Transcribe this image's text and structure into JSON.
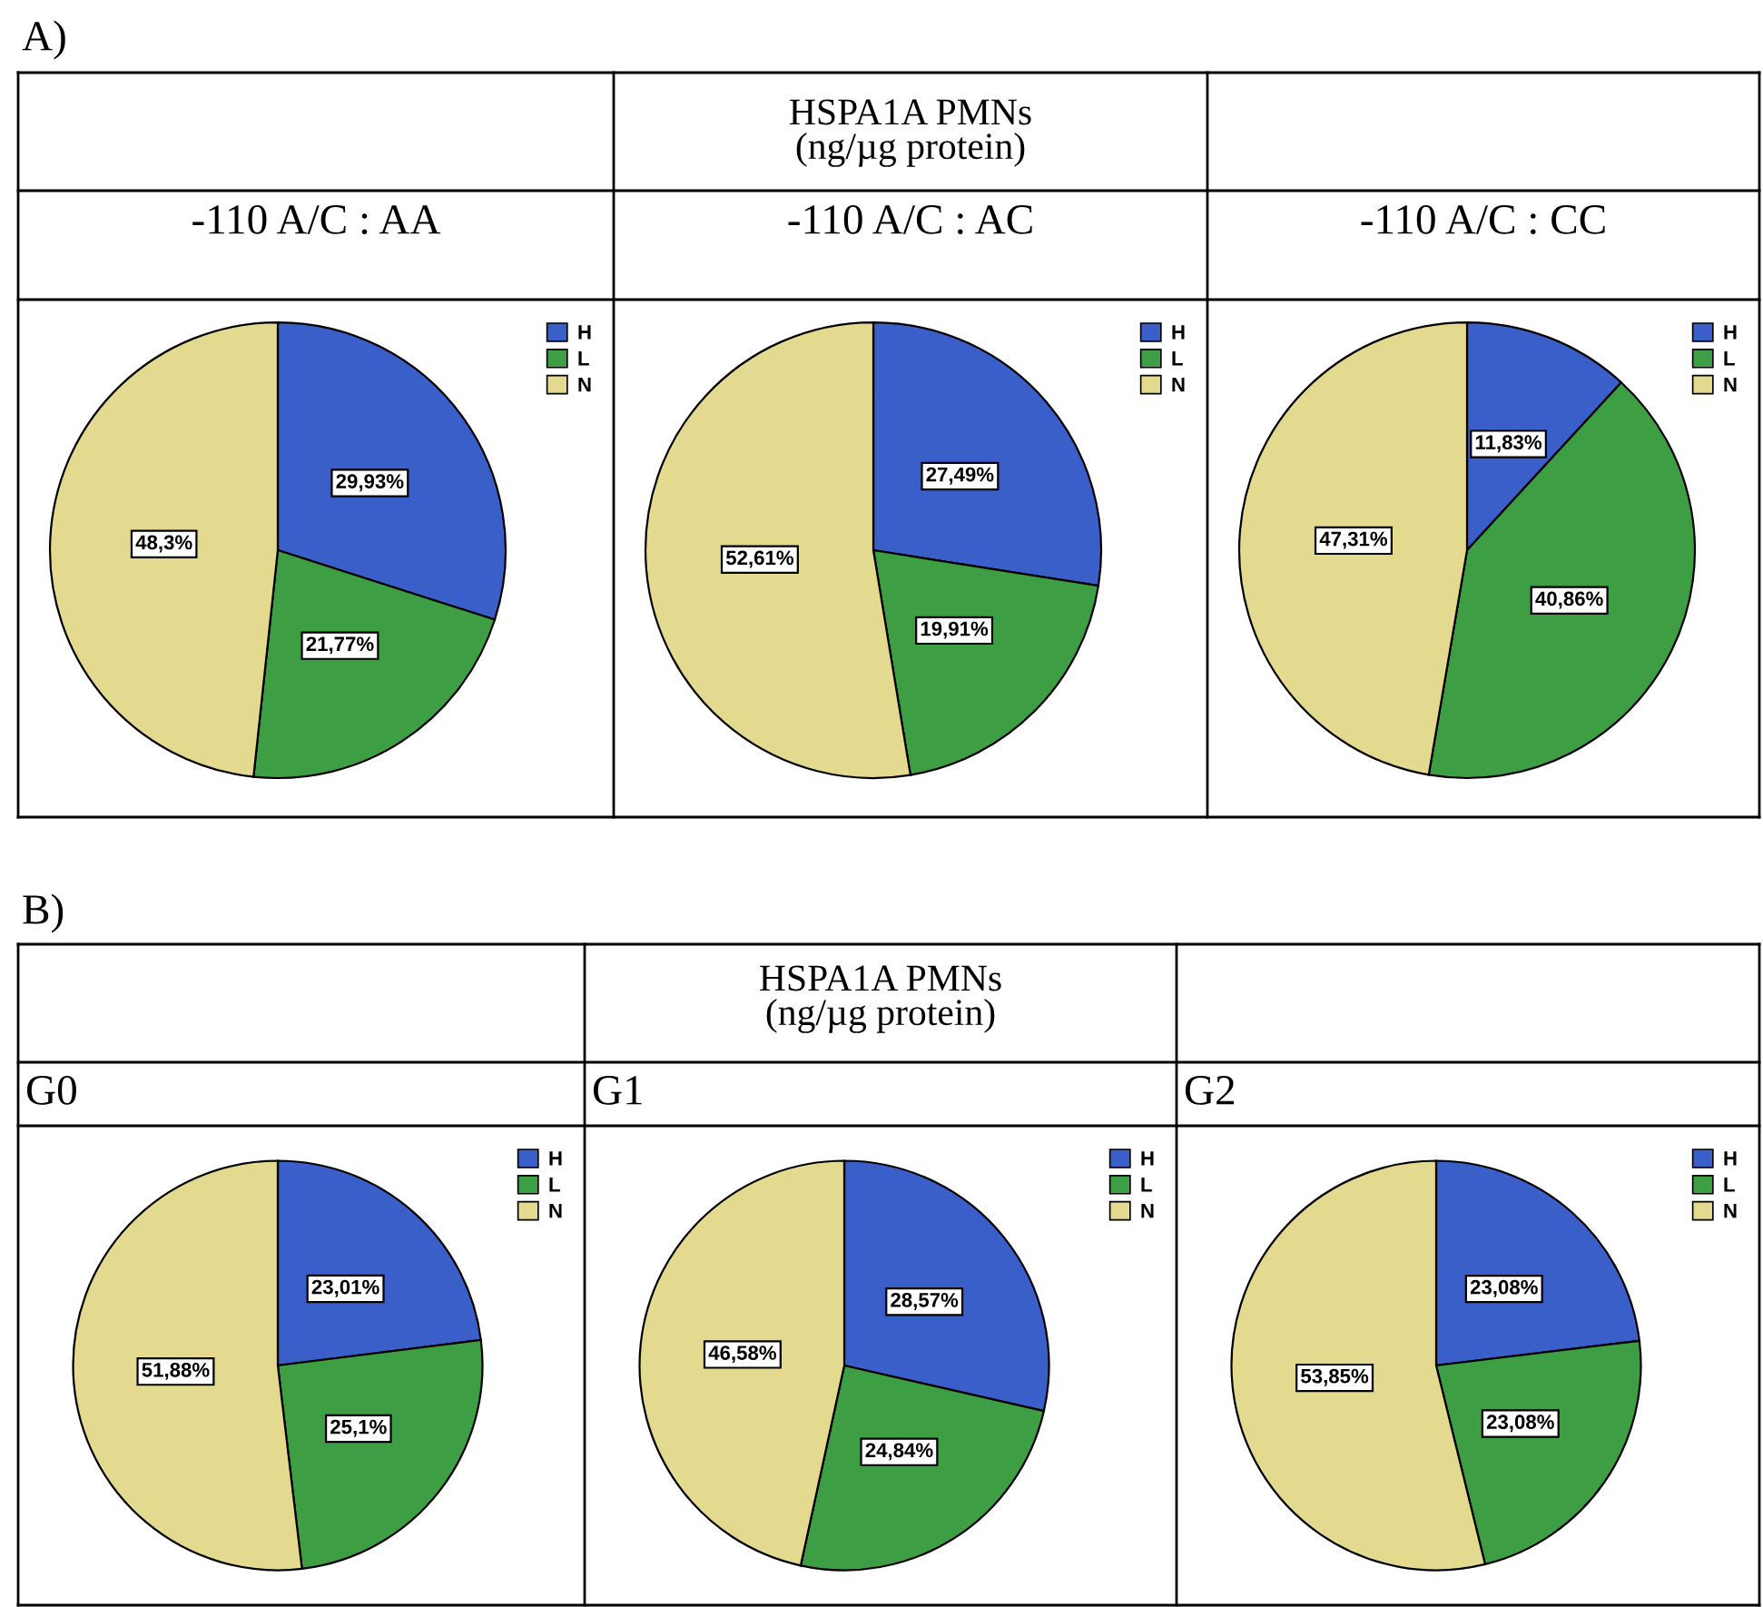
{
  "chart_data": [
    {
      "type": "pie",
      "title": "-110 A/C : AA",
      "annotations": [
        "A)"
      ],
      "categories": [
        "H",
        "L",
        "N"
      ],
      "values": [
        29.93,
        21.77,
        48.3
      ],
      "colors": [
        "#3b5fc9",
        "#3e9e44",
        "#e3d98f"
      ],
      "value_labels": [
        "29,93%",
        "21,77%",
        "48,3%"
      ],
      "legend": "top right"
    },
    {
      "type": "pie",
      "title": "-110 A/C : AC",
      "subtitle": "HSPA1A PMNs\n(ng/µg protein)",
      "categories": [
        "H",
        "L",
        "N"
      ],
      "values": [
        27.49,
        19.91,
        52.61
      ],
      "colors": [
        "#3b5fc9",
        "#3e9e44",
        "#e3d98f"
      ],
      "value_labels": [
        "27,49%",
        "19,91%",
        "52,61%"
      ],
      "legend": "top right"
    },
    {
      "type": "pie",
      "title": "-110 A/C : CC",
      "categories": [
        "H",
        "L",
        "N"
      ],
      "values": [
        11.83,
        40.86,
        47.31
      ],
      "colors": [
        "#3b5fc9",
        "#3e9e44",
        "#e3d98f"
      ],
      "value_labels": [
        "11,83%",
        "40,86%",
        "47,31%"
      ],
      "legend": "top right"
    },
    {
      "type": "pie",
      "title": "G0",
      "annotations": [
        "B)"
      ],
      "categories": [
        "H",
        "L",
        "N"
      ],
      "values": [
        23.01,
        25.1,
        51.88
      ],
      "colors": [
        "#3b5fc9",
        "#3e9e44",
        "#e3d98f"
      ],
      "value_labels": [
        "23,01%",
        "25,1%",
        "51,88%"
      ],
      "legend": "top right"
    },
    {
      "type": "pie",
      "title": "G1",
      "subtitle": "HSPA1A PMNs\n(ng/µg protein)",
      "categories": [
        "H",
        "L",
        "N"
      ],
      "values": [
        28.57,
        24.84,
        46.58
      ],
      "colors": [
        "#3b5fc9",
        "#3e9e44",
        "#e3d98f"
      ],
      "value_labels": [
        "28,57%",
        "24,84%",
        "46,58%"
      ],
      "legend": "top right"
    },
    {
      "type": "pie",
      "title": "G2",
      "categories": [
        "H",
        "L",
        "N"
      ],
      "values": [
        23.08,
        23.08,
        53.85
      ],
      "colors": [
        "#3b5fc9",
        "#3e9e44",
        "#e3d98f"
      ],
      "value_labels": [
        "23,08%",
        "23,08%",
        "53,85%"
      ],
      "legend": "top right"
    }
  ]
}
